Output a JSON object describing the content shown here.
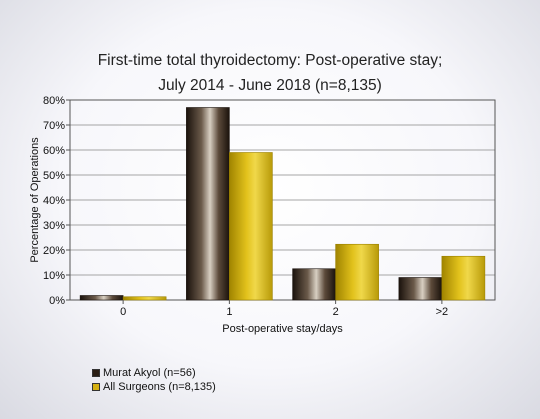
{
  "chart_data": {
    "type": "bar",
    "title": [
      "First-time total thyroidectomy: Post-operative stay;",
      "July 2014 - June 2018 (n=8,135)"
    ],
    "xlabel": "Post-operative stay/days",
    "ylabel": "Percentage of Operations",
    "categories": [
      "0",
      "1",
      "2",
      ">2"
    ],
    "ylim": [
      0,
      80
    ],
    "yticks": [
      "0%",
      "10%",
      "20%",
      "30%",
      "40%",
      "50%",
      "60%",
      "70%",
      "80%"
    ],
    "grid": true,
    "legend_position": "bottom-left",
    "series": [
      {
        "name": "Murat Akyol (n=56)",
        "color": "#3a2a1e",
        "values": [
          1.8,
          77,
          12.5,
          9
        ]
      },
      {
        "name": "All Surgeons (n=8,135)",
        "color": "#d4b012",
        "values": [
          1.3,
          59,
          22.3,
          17.5
        ]
      }
    ]
  }
}
